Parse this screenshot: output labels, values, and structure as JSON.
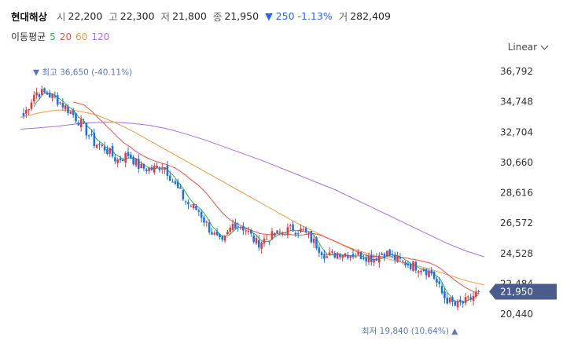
{
  "header": {
    "name": "현대해상",
    "open_label": "시",
    "open": "22,200",
    "high_label": "고",
    "high": "22,300",
    "low_label": "저",
    "low": "21,800",
    "close_label": "종",
    "close": "21,950",
    "change": "▼ 250 -1.13%",
    "volume_label": "거",
    "volume": "282,409"
  },
  "ma": {
    "label": "이동평균",
    "items": [
      {
        "period": "5",
        "color": "#36b14a"
      },
      {
        "period": "20",
        "color": "#e8524a"
      },
      {
        "period": "60",
        "color": "#f29a3a"
      },
      {
        "period": "120",
        "color": "#a76ee6"
      }
    ]
  },
  "scale": {
    "label": "Linear"
  },
  "colors": {
    "up": "#e8373e",
    "down": "#1a73e8",
    "price_tag": "#4a5c8c",
    "annotation": "#5a78b8"
  },
  "chart_data": {
    "type": "candlestick",
    "y_ticks": [
      "36,792",
      "34,748",
      "32,704",
      "30,660",
      "28,616",
      "26,572",
      "24,528",
      "22,484",
      "20,440"
    ],
    "ylim": [
      20440,
      36792
    ],
    "current_price": "21,950",
    "high_annotation": "▼ 최고 36,650 (-40.11%)",
    "low_annotation": "최저 19,840 (10.64%) ▲",
    "trend_closes": [
      33800,
      35400,
      35300,
      34800,
      34100,
      33200,
      32000,
      31600,
      30800,
      31200,
      30300,
      30200,
      30500,
      29100,
      27900,
      27400,
      26100,
      25100,
      26600,
      26200,
      25200,
      25600,
      25900,
      26200,
      26000,
      25200,
      24300,
      24600,
      24500,
      24400,
      24200,
      24600,
      24100,
      23800,
      23600,
      23200,
      21600,
      21000,
      21300,
      21950
    ],
    "ma120": [
      32900,
      33000,
      33100,
      33250,
      33350,
      33380,
      33300,
      33150,
      32900,
      32550,
      32150,
      31700,
      31250,
      30800,
      30300,
      29800,
      29300,
      28800,
      28200,
      27600,
      27000,
      26400,
      25800,
      25200,
      24700,
      24300
    ],
    "ma60": [
      33700,
      34000,
      34200,
      34150,
      33900,
      33400,
      32800,
      32100,
      31400,
      30700,
      30000,
      29300,
      28600,
      27900,
      27200,
      26500,
      25900,
      25300,
      24800,
      24400,
      24100,
      23800,
      23500,
      23100,
      22700,
      22400
    ]
  }
}
